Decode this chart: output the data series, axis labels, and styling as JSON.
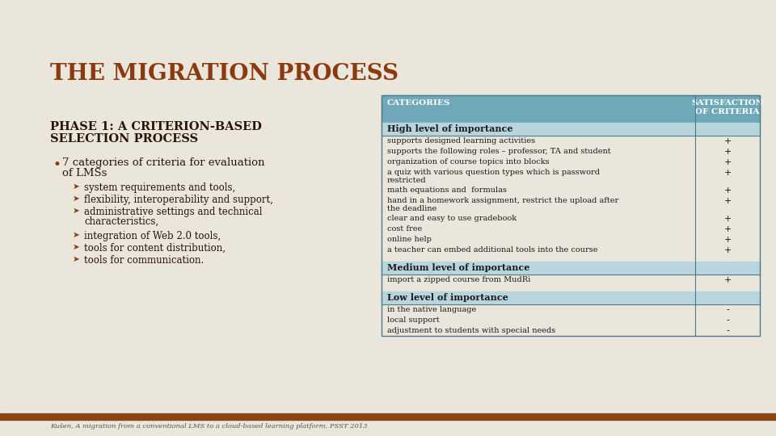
{
  "title": "THE MIGRATION PROCESS",
  "title_color": "#8B3A0F",
  "bg_color": "#EAE6DC",
  "phase_title_line1": "PHASE 1: A CRITERION-BASED",
  "phase_title_line2": "SELECTION PROCESS",
  "phase_title_color": "#2A1505",
  "bullet_color": "#8B3A0F",
  "bullet_text_color": "#2A1505",
  "arrow_color": "#8B3A0F",
  "sub_bullets": [
    "system requirements and tools,",
    "flexibility, interoperability and support,",
    "administrative settings and technical\ncharacteristics,",
    "integration of Web 2.0 tools,",
    "tools for content distribution,",
    "tools for communication."
  ],
  "table_header_bg": "#6FA8B8",
  "table_header_text": "#FFFFFF",
  "table_section_bg": "#B8D4DC",
  "table_section_text": "#1A1A1A",
  "table_row_bg": "#EAE6DC",
  "table_border_color": "#4A7A8A",
  "col1_header": "CATEGORIES",
  "col2_header": "SATISFACTION\nOF CRITERIA",
  "sections": [
    {
      "title": "High level of importance",
      "rows": [
        [
          "supports designed learning activities",
          "+"
        ],
        [
          "supports the following roles – professor, TA and student",
          "+"
        ],
        [
          "organization of course topics into blocks",
          "+"
        ],
        [
          "a quiz with various question types which is password\nrestricted",
          "+"
        ],
        [
          "math equations and  formulas",
          "+"
        ],
        [
          "hand in a homework assignment, restrict the upload after\nthe deadline",
          "+"
        ],
        [
          "clear and easy to use gradebook",
          "+"
        ],
        [
          "cost free",
          "+"
        ],
        [
          "online help",
          "+"
        ],
        [
          "a teacher can embed additional tools into the course",
          "+"
        ]
      ]
    },
    {
      "title": "Medium level of importance",
      "rows": [
        [
          "import a zipped course from MudRi",
          "+"
        ]
      ]
    },
    {
      "title": "Low level of importance",
      "rows": [
        [
          "in the native language",
          "-"
        ],
        [
          "local support",
          "-"
        ],
        [
          "adjustment to students with special needs",
          "-"
        ]
      ]
    }
  ],
  "footer_text": "Kušen, A migration from a conventional LMS to a cloud-based learning platform, PSST 2013",
  "footer_color": "#555555",
  "footer_bar_color": "#8B4513"
}
